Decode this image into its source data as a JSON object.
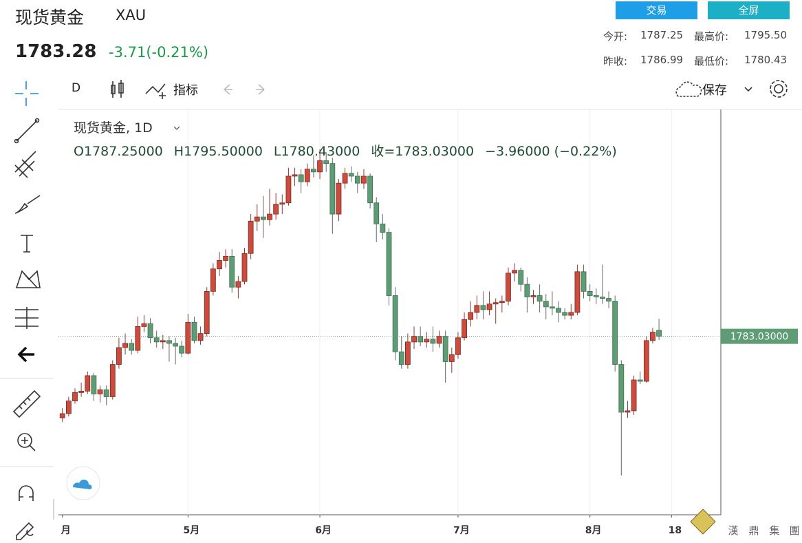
{
  "header": {
    "name": "现货黄金",
    "symbol": "XAU",
    "price": "1783.28",
    "change": "-3.71(-0.21%)",
    "buttons": [
      "交易",
      "全屏"
    ],
    "stats": [
      [
        "今开:",
        "1787.25",
        "最高价:",
        "1795.50"
      ],
      [
        "昨收:",
        "1786.99",
        "最低价:",
        "1780.43"
      ]
    ]
  },
  "toolbar": {
    "interval": "D",
    "indicators": "指标",
    "save": "保存"
  },
  "watermark": [
    "漢",
    "鼎",
    "集",
    "團"
  ],
  "chart_data": {
    "type": "candlestick",
    "title": "现货黄金, 1D",
    "legend": [
      "O1787.25000",
      "H1795.50000",
      "L1780.43000",
      "收=1783.03000",
      "−3.96000 (−0.22%)"
    ],
    "up_color": "#cc4b3c",
    "down_color": "#5e9c76",
    "grid": true,
    "ylim": [
      1656,
      1944
    ],
    "xlim": [
      -0.3,
      105
    ],
    "xticks": [
      {
        "value": 0,
        "label": "月"
      },
      {
        "value": 20,
        "label": "5月"
      },
      {
        "value": 41,
        "label": "6月"
      },
      {
        "value": 63,
        "label": "7月"
      },
      {
        "value": 84,
        "label": "8月"
      },
      {
        "value": 97,
        "label": "18"
      }
    ],
    "price_line": {
      "value": 1783.03,
      "label": "1783.03000"
    },
    "ohlc": [
      [
        1725,
        1732,
        1722,
        1728
      ],
      [
        1728,
        1740,
        1726,
        1737
      ],
      [
        1737,
        1746,
        1735,
        1743
      ],
      [
        1743,
        1750,
        1740,
        1744
      ],
      [
        1744,
        1758,
        1742,
        1755
      ],
      [
        1755,
        1757,
        1737,
        1742
      ],
      [
        1742,
        1748,
        1736,
        1745
      ],
      [
        1745,
        1748,
        1734,
        1740
      ],
      [
        1740,
        1766,
        1738,
        1763
      ],
      [
        1763,
        1782,
        1760,
        1775
      ],
      [
        1775,
        1785,
        1770,
        1778
      ],
      [
        1778,
        1781,
        1770,
        1773
      ],
      [
        1773,
        1797,
        1771,
        1790
      ],
      [
        1790,
        1798,
        1786,
        1792
      ],
      [
        1792,
        1796,
        1778,
        1782
      ],
      [
        1782,
        1787,
        1775,
        1779
      ],
      [
        1779,
        1784,
        1774,
        1780
      ],
      [
        1780,
        1783,
        1765,
        1778
      ],
      [
        1778,
        1782,
        1763,
        1776
      ],
      [
        1776,
        1780,
        1768,
        1771
      ],
      [
        1771,
        1799,
        1770,
        1793
      ],
      [
        1793,
        1797,
        1778,
        1780
      ],
      [
        1780,
        1790,
        1777,
        1785
      ],
      [
        1785,
        1818,
        1783,
        1815
      ],
      [
        1815,
        1835,
        1812,
        1831
      ],
      [
        1831,
        1843,
        1826,
        1837
      ],
      [
        1837,
        1845,
        1832,
        1840
      ],
      [
        1840,
        1845,
        1814,
        1818
      ],
      [
        1818,
        1826,
        1810,
        1822
      ],
      [
        1822,
        1846,
        1820,
        1842
      ],
      [
        1842,
        1870,
        1838,
        1865
      ],
      [
        1865,
        1877,
        1858,
        1868
      ],
      [
        1868,
        1883,
        1853,
        1866
      ],
      [
        1866,
        1888,
        1862,
        1870
      ],
      [
        1870,
        1885,
        1866,
        1877
      ],
      [
        1877,
        1884,
        1870,
        1878
      ],
      [
        1878,
        1903,
        1876,
        1897
      ],
      [
        1897,
        1903,
        1890,
        1898
      ],
      [
        1898,
        1902,
        1885,
        1893
      ],
      [
        1893,
        1906,
        1890,
        1902
      ],
      [
        1902,
        1912,
        1896,
        1900
      ],
      [
        1900,
        1916,
        1895,
        1908
      ],
      [
        1908,
        1914,
        1900,
        1906
      ],
      [
        1906,
        1910,
        1856,
        1870
      ],
      [
        1870,
        1895,
        1865,
        1892
      ],
      [
        1892,
        1903,
        1888,
        1899
      ],
      [
        1899,
        1904,
        1893,
        1897
      ],
      [
        1897,
        1900,
        1885,
        1892
      ],
      [
        1892,
        1902,
        1888,
        1897
      ],
      [
        1897,
        1899,
        1874,
        1878
      ],
      [
        1878,
        1882,
        1850,
        1863
      ],
      [
        1863,
        1870,
        1852,
        1857
      ],
      [
        1857,
        1860,
        1805,
        1812
      ],
      [
        1812,
        1818,
        1766,
        1772
      ],
      [
        1772,
        1783,
        1760,
        1763
      ],
      [
        1763,
        1785,
        1760,
        1779
      ],
      [
        1779,
        1790,
        1774,
        1783
      ],
      [
        1783,
        1790,
        1776,
        1779
      ],
      [
        1779,
        1786,
        1775,
        1781
      ],
      [
        1781,
        1790,
        1772,
        1778
      ],
      [
        1778,
        1787,
        1775,
        1783
      ],
      [
        1783,
        1787,
        1750,
        1765
      ],
      [
        1765,
        1775,
        1757,
        1770
      ],
      [
        1770,
        1786,
        1767,
        1782
      ],
      [
        1782,
        1800,
        1780,
        1795
      ],
      [
        1795,
        1808,
        1790,
        1800
      ],
      [
        1800,
        1812,
        1795,
        1805
      ],
      [
        1805,
        1815,
        1795,
        1802
      ],
      [
        1802,
        1815,
        1798,
        1806
      ],
      [
        1806,
        1810,
        1792,
        1807
      ],
      [
        1807,
        1812,
        1800,
        1808
      ],
      [
        1808,
        1832,
        1805,
        1828
      ],
      [
        1828,
        1835,
        1822,
        1830
      ],
      [
        1830,
        1832,
        1815,
        1820
      ],
      [
        1820,
        1825,
        1800,
        1811
      ],
      [
        1811,
        1816,
        1806,
        1812
      ],
      [
        1812,
        1820,
        1800,
        1808
      ],
      [
        1808,
        1813,
        1795,
        1804
      ],
      [
        1804,
        1815,
        1798,
        1803
      ],
      [
        1803,
        1808,
        1793,
        1800
      ],
      [
        1800,
        1803,
        1795,
        1798
      ],
      [
        1798,
        1806,
        1795,
        1800
      ],
      [
        1800,
        1834,
        1798,
        1829
      ],
      [
        1829,
        1834,
        1810,
        1815
      ],
      [
        1815,
        1820,
        1808,
        1812
      ],
      [
        1812,
        1817,
        1806,
        1811
      ],
      [
        1811,
        1834,
        1806,
        1810
      ],
      [
        1810,
        1815,
        1803,
        1808
      ],
      [
        1808,
        1812,
        1758,
        1763
      ],
      [
        1763,
        1766,
        1684,
        1729
      ],
      [
        1729,
        1737,
        1725,
        1730
      ],
      [
        1730,
        1755,
        1727,
        1752
      ],
      [
        1752,
        1758,
        1749,
        1751
      ],
      [
        1751,
        1783,
        1750,
        1780
      ],
      [
        1780,
        1789,
        1778,
        1786
      ],
      [
        1787.25,
        1795.5,
        1780.43,
        1783.03
      ]
    ]
  }
}
